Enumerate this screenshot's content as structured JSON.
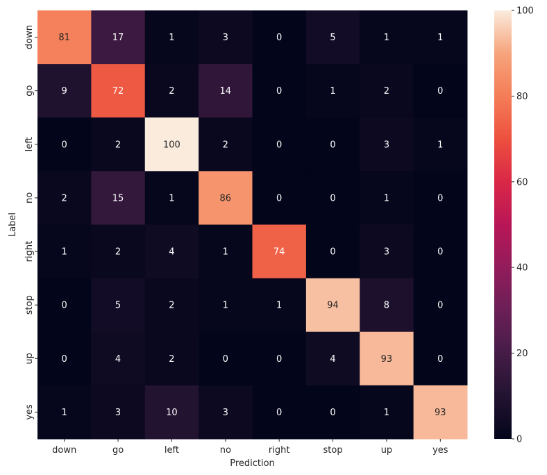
{
  "chart_data": {
    "type": "heatmap",
    "title": "",
    "xlabel": "Prediction",
    "ylabel": "Label",
    "x_categories": [
      "down",
      "go",
      "left",
      "no",
      "right",
      "stop",
      "up",
      "yes"
    ],
    "y_categories": [
      "down",
      "go",
      "left",
      "no",
      "right",
      "stop",
      "up",
      "yes"
    ],
    "values": [
      [
        81,
        17,
        1,
        3,
        0,
        5,
        1,
        1
      ],
      [
        9,
        72,
        2,
        14,
        0,
        1,
        2,
        0
      ],
      [
        0,
        2,
        100,
        2,
        0,
        0,
        3,
        1
      ],
      [
        2,
        15,
        1,
        86,
        0,
        0,
        1,
        0
      ],
      [
        1,
        2,
        4,
        1,
        74,
        0,
        3,
        0
      ],
      [
        0,
        5,
        2,
        1,
        1,
        94,
        8,
        0
      ],
      [
        0,
        4,
        2,
        0,
        0,
        4,
        93,
        0
      ],
      [
        1,
        3,
        10,
        3,
        0,
        0,
        1,
        93
      ]
    ],
    "colormap": "rocket",
    "color_range": [
      0,
      100
    ],
    "colorbar": {
      "ticks": [
        0,
        20,
        40,
        60,
        80,
        100
      ],
      "tick_labels": [
        "0",
        "20",
        "40",
        "60",
        "80",
        "100"
      ]
    },
    "annotations": true,
    "grid": false
  }
}
